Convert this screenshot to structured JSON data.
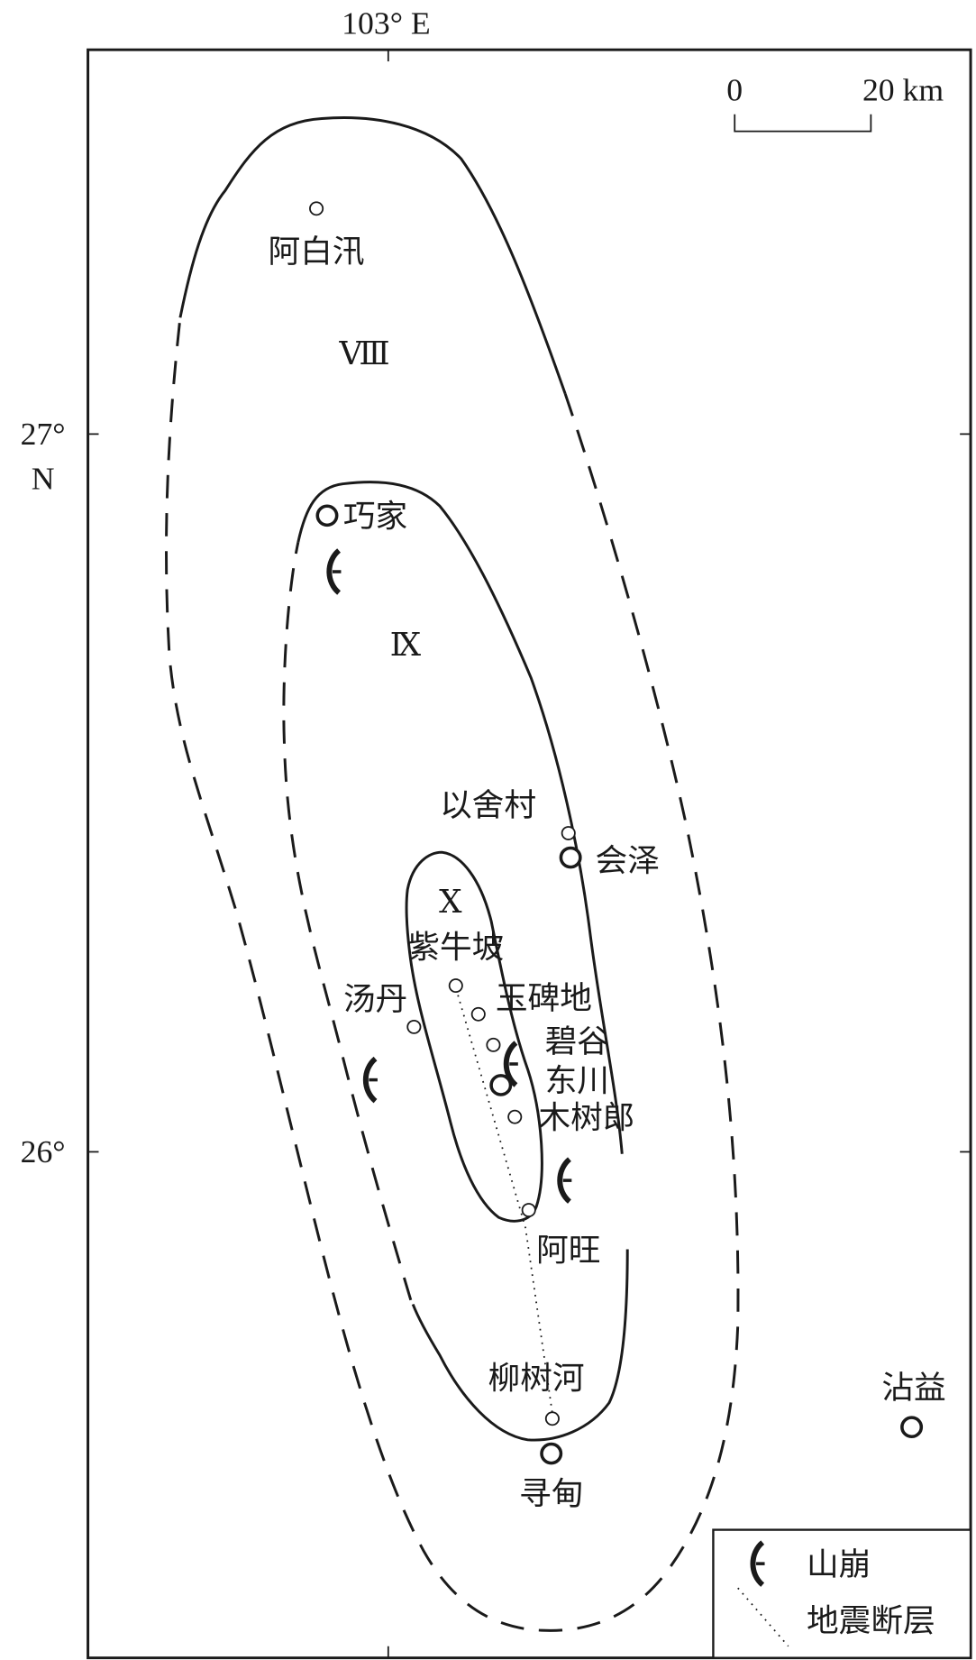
{
  "axes": {
    "lon_label": "103° E",
    "lat_labels": [
      {
        "deg": "27°",
        "hemi": "N"
      },
      {
        "deg": "26°",
        "hemi": ""
      }
    ]
  },
  "scale_bar": {
    "start_label": "0",
    "end_label": "20 km"
  },
  "intensity_zones": [
    {
      "id": "VIII",
      "label": "Ⅷ"
    },
    {
      "id": "IX",
      "label": "Ⅸ"
    },
    {
      "id": "X",
      "label": "Ⅹ"
    }
  ],
  "places": [
    {
      "name": "阿白汛",
      "marker": "small"
    },
    {
      "name": "巧家",
      "marker": "large"
    },
    {
      "name": "以舍村",
      "marker": "small"
    },
    {
      "name": "会泽",
      "marker": "large"
    },
    {
      "name": "紫牛坡",
      "marker": "small"
    },
    {
      "name": "汤丹",
      "marker": "small"
    },
    {
      "name": "玉碑地",
      "marker": "small"
    },
    {
      "name": "碧谷",
      "marker": "small"
    },
    {
      "name": "东川",
      "marker": "large"
    },
    {
      "name": "木树郎",
      "marker": "small"
    },
    {
      "name": "阿旺",
      "marker": "small"
    },
    {
      "name": "柳树河",
      "marker": "small"
    },
    {
      "name": "寻甸",
      "marker": "large"
    },
    {
      "name": "沾益",
      "marker": "large"
    }
  ],
  "legend": {
    "landslide_label": "山崩",
    "fault_label": "地震断层",
    "landslide_icon": "landslide-symbol",
    "fault_icon": "dotted-line"
  },
  "colors": {
    "ink": "#1a1a1a",
    "background": "#ffffff"
  }
}
